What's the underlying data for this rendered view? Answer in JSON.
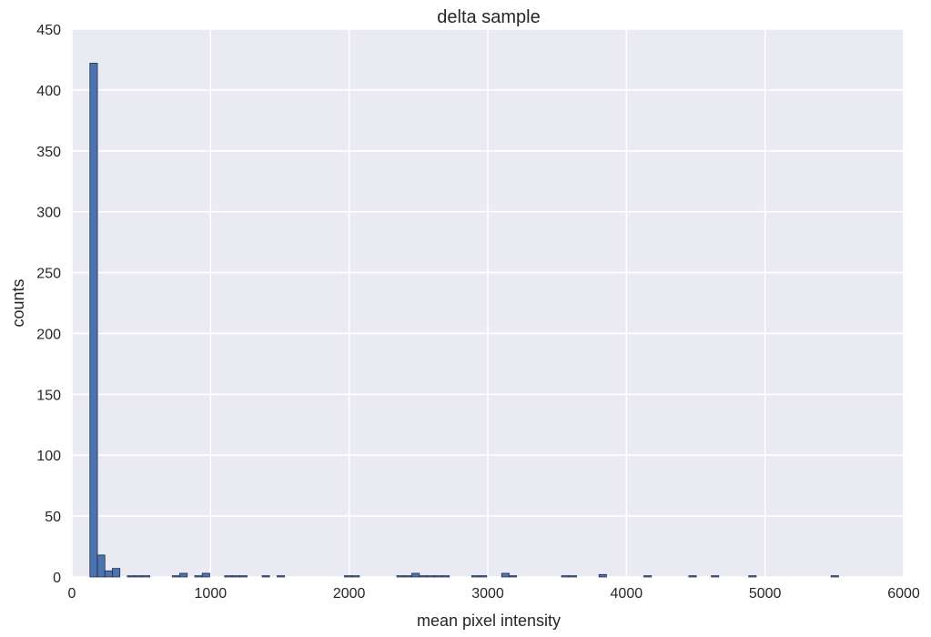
{
  "chart_data": {
    "type": "bar",
    "title": "delta sample",
    "xlabel": "mean pixel intensity",
    "ylabel": "counts",
    "xlim": [
      0,
      6000
    ],
    "ylim": [
      0,
      450
    ],
    "xticks": [
      0,
      1000,
      2000,
      3000,
      4000,
      5000,
      6000
    ],
    "yticks": [
      0,
      50,
      100,
      150,
      200,
      250,
      300,
      350,
      400,
      450
    ],
    "grid": true,
    "bin_width": 54,
    "bins": [
      {
        "x0": 130,
        "x1": 184,
        "count": 422
      },
      {
        "x0": 184,
        "x1": 238,
        "count": 18
      },
      {
        "x0": 238,
        "x1": 292,
        "count": 5
      },
      {
        "x0": 292,
        "x1": 346,
        "count": 7
      },
      {
        "x0": 400,
        "x1": 454,
        "count": 1
      },
      {
        "x0": 454,
        "x1": 508,
        "count": 1
      },
      {
        "x0": 508,
        "x1": 562,
        "count": 1
      },
      {
        "x0": 724,
        "x1": 778,
        "count": 1
      },
      {
        "x0": 778,
        "x1": 832,
        "count": 3
      },
      {
        "x0": 886,
        "x1": 940,
        "count": 1
      },
      {
        "x0": 940,
        "x1": 994,
        "count": 3
      },
      {
        "x0": 1102,
        "x1": 1156,
        "count": 1
      },
      {
        "x0": 1156,
        "x1": 1210,
        "count": 1
      },
      {
        "x0": 1210,
        "x1": 1264,
        "count": 1
      },
      {
        "x0": 1372,
        "x1": 1426,
        "count": 1
      },
      {
        "x0": 1480,
        "x1": 1534,
        "count": 1
      },
      {
        "x0": 1966,
        "x1": 2020,
        "count": 1
      },
      {
        "x0": 2020,
        "x1": 2074,
        "count": 1
      },
      {
        "x0": 2344,
        "x1": 2398,
        "count": 1
      },
      {
        "x0": 2398,
        "x1": 2452,
        "count": 1
      },
      {
        "x0": 2452,
        "x1": 2506,
        "count": 3
      },
      {
        "x0": 2506,
        "x1": 2560,
        "count": 1
      },
      {
        "x0": 2560,
        "x1": 2614,
        "count": 1
      },
      {
        "x0": 2614,
        "x1": 2668,
        "count": 1
      },
      {
        "x0": 2668,
        "x1": 2722,
        "count": 1
      },
      {
        "x0": 2884,
        "x1": 2938,
        "count": 1
      },
      {
        "x0": 2938,
        "x1": 2992,
        "count": 1
      },
      {
        "x0": 3100,
        "x1": 3154,
        "count": 3
      },
      {
        "x0": 3154,
        "x1": 3208,
        "count": 1
      },
      {
        "x0": 3532,
        "x1": 3586,
        "count": 1
      },
      {
        "x0": 3586,
        "x1": 3640,
        "count": 1
      },
      {
        "x0": 3802,
        "x1": 3856,
        "count": 2
      },
      {
        "x0": 4126,
        "x1": 4180,
        "count": 1
      },
      {
        "x0": 4450,
        "x1": 4504,
        "count": 1
      },
      {
        "x0": 4612,
        "x1": 4666,
        "count": 1
      },
      {
        "x0": 4882,
        "x1": 4936,
        "count": 1
      },
      {
        "x0": 5476,
        "x1": 5530,
        "count": 1
      }
    ]
  },
  "colors": {
    "bar_fill": "#4c72b0",
    "bar_edge": "#1f2f4d",
    "plot_bg": "#eaeaf2",
    "grid": "#ffffff"
  }
}
